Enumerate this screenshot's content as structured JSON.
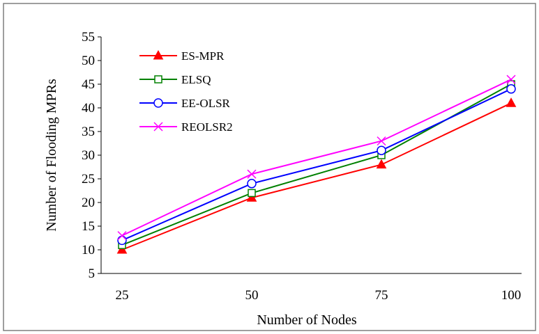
{
  "chart_data": {
    "type": "line",
    "x": [
      25,
      50,
      75,
      100
    ],
    "xlabel": "Number of  Nodes",
    "ylabel": "Number of Flooding  MPRs",
    "ylim": [
      5,
      55
    ],
    "yticks": [
      5,
      10,
      15,
      20,
      25,
      30,
      35,
      40,
      45,
      50,
      55
    ],
    "grid": false,
    "legend_position": "top-left",
    "series": [
      {
        "name": "ES-MPR",
        "values": [
          10,
          21,
          28,
          41
        ],
        "color": "#ff0000",
        "marker": "filled-triangle"
      },
      {
        "name": "ELSQ",
        "values": [
          11,
          22,
          30,
          45
        ],
        "color": "#008000",
        "marker": "open-square"
      },
      {
        "name": "EE-OLSR",
        "values": [
          12,
          24,
          31,
          44
        ],
        "color": "#0000ff",
        "marker": "open-circle"
      },
      {
        "name": "REOLSR2",
        "values": [
          13,
          26,
          33,
          46
        ],
        "color": "#ff00ff",
        "marker": "x-cross"
      }
    ]
  }
}
